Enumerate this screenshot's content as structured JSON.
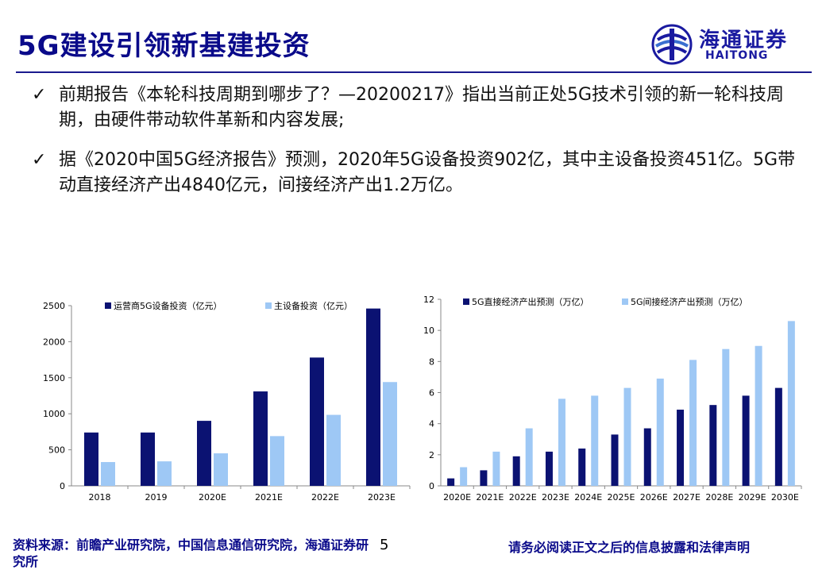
{
  "header": {
    "title": "5G建设引领新基建投资"
  },
  "logo": {
    "cn": "海通证券",
    "en": "HAITONG"
  },
  "bullets": [
    {
      "check": "✓",
      "text": "前期报告《本轮科技周期到哪步了？—20200217》指出当前正处5G技术引领的新一轮科技周期，由硬件带动软件革新和内容发展;"
    },
    {
      "check": "✓",
      "text": "据《2020中国5G经济报告》预测，2020年5G设备投资902亿，其中主设备投资451亿。5G带动直接经济产出4840亿元，间接经济产出1.2万亿。"
    }
  ],
  "colors": {
    "dark": "#0b1272",
    "light": "#9ec8f5",
    "title": "#0a0a8a"
  },
  "chart_data": [
    {
      "type": "bar",
      "title": "",
      "xlabel": "",
      "ylabel": "",
      "categories": [
        "2018",
        "2019",
        "2020E",
        "2021E",
        "2022E",
        "2023E"
      ],
      "ylim": [
        0,
        2500
      ],
      "yticks": [
        0,
        500,
        1000,
        1500,
        2000,
        2500
      ],
      "legend_position": "top",
      "grid": false,
      "series": [
        {
          "name": "运营商5G设备投资（亿元）",
          "values": [
            740,
            740,
            902,
            1310,
            1780,
            2460
          ]
        },
        {
          "name": "主设备投资（亿元）",
          "values": [
            330,
            340,
            451,
            690,
            985,
            1440
          ]
        }
      ]
    },
    {
      "type": "bar",
      "title": "",
      "xlabel": "",
      "ylabel": "",
      "categories": [
        "2020E",
        "2021E",
        "2022E",
        "2023E",
        "2024E",
        "2025E",
        "2026E",
        "2027E",
        "2028E",
        "2029E",
        "2030E"
      ],
      "ylim": [
        0,
        12
      ],
      "yticks": [
        0,
        2,
        4,
        6,
        8,
        10,
        12
      ],
      "legend_position": "top",
      "grid": false,
      "series": [
        {
          "name": "5G直接经济产出预测（万亿）",
          "values": [
            0.48,
            1.0,
            1.9,
            2.2,
            2.4,
            3.3,
            3.7,
            4.9,
            5.2,
            5.8,
            6.3
          ]
        },
        {
          "name": "5G间接经济产出预测（万亿）",
          "values": [
            1.2,
            2.2,
            3.7,
            5.6,
            5.8,
            6.3,
            6.9,
            8.1,
            8.8,
            9.0,
            10.6
          ]
        }
      ]
    }
  ],
  "footer": {
    "source": "资料来源：前瞻产业研究院，中国信息通信研究院，海通证券研究所",
    "page": "5",
    "disclaimer": "请务必阅读正文之后的信息披露和法律声明"
  }
}
